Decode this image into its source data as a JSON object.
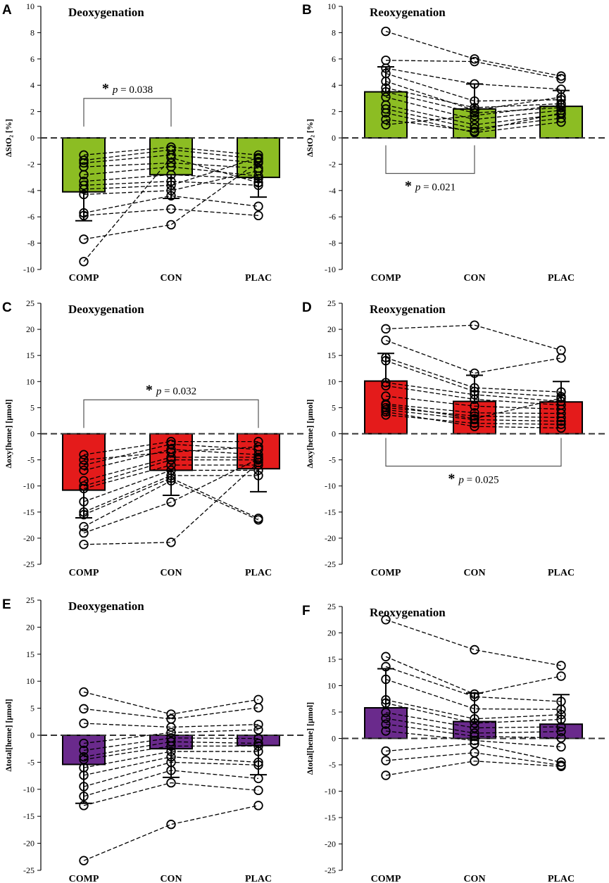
{
  "colors": {
    "green": "#8cbd23",
    "red": "#e41b1b",
    "purple": "#6a2a8c",
    "ink": "#000000"
  },
  "chart_data": [
    {
      "letter": "A",
      "type": "bar",
      "title": "Deoxygenation",
      "ylabel": "ΔStO₂ [%]",
      "ylim": [
        -10,
        10
      ],
      "yticks": [
        -10,
        -8,
        -6,
        -4,
        -2,
        0,
        2,
        4,
        6,
        8,
        10
      ],
      "categories": [
        "COMP",
        "CON",
        "PLAC"
      ],
      "means": [
        -4.1,
        -2.8,
        -3.0
      ],
      "sd": [
        2.2,
        1.8,
        1.5
      ],
      "color": "green",
      "individual": [
        [
          -1.3,
          -1.7,
          -1.9,
          -2.2,
          -2.8,
          -3.3,
          -3.6,
          -3.9,
          -4.3,
          -5.7,
          -5.9,
          -7.7,
          -9.4
        ],
        [
          -0.7,
          -0.9,
          -1.3,
          -1.9,
          -2.2,
          -2.8,
          -3.3,
          -3.6,
          -4.0,
          -4.4,
          -5.4,
          -6.6,
          -1.5
        ],
        [
          -1.3,
          -1.6,
          -1.9,
          -2.3,
          -2.9,
          -3.1,
          -3.6,
          -1.5,
          -2.5,
          -5.2,
          -5.9,
          -1.8,
          -3.4
        ]
      ],
      "significance": [
        {
          "from": 0,
          "to": 1,
          "label": "p = 0.038",
          "y": 3.0,
          "direction": "down"
        }
      ]
    },
    {
      "letter": "B",
      "type": "bar",
      "title": "Reoxygenation",
      "ylabel": "ΔStO₂ [%]",
      "ylim": [
        -10,
        10
      ],
      "yticks": [
        -10,
        -8,
        -6,
        -4,
        -2,
        0,
        2,
        4,
        6,
        8,
        10
      ],
      "categories": [
        "COMP",
        "CON",
        "PLAC"
      ],
      "means": [
        3.5,
        2.2,
        2.4
      ],
      "sd": [
        1.9,
        1.9,
        1.2
      ],
      "color": "green",
      "individual": [
        [
          8.1,
          5.9,
          5.3,
          4.9,
          3.8,
          3.5,
          3.1,
          2.5,
          2.2,
          1.9,
          1.4,
          1.0,
          4.3
        ],
        [
          6.0,
          5.8,
          4.1,
          2.8,
          2.3,
          1.9,
          1.4,
          1.0,
          0.7,
          0.4,
          0.5,
          1.7,
          2.1
        ],
        [
          4.7,
          4.5,
          3.7,
          2.9,
          2.6,
          2.3,
          2.1,
          1.8,
          1.5,
          1.2,
          1.9,
          2.5,
          3.1
        ]
      ],
      "significance": [
        {
          "from": 0,
          "to": 1,
          "label": "p = 0.021",
          "y": -2.7,
          "direction": "up"
        }
      ]
    },
    {
      "letter": "C",
      "type": "bar",
      "title": "Deoxygenation",
      "ylabel": "Δoxy[heme] [μmol]",
      "ylim": [
        -25,
        25
      ],
      "yticks": [
        -25,
        -20,
        -15,
        -10,
        -5,
        0,
        5,
        10,
        15,
        20,
        25
      ],
      "categories": [
        "COMP",
        "CON",
        "PLAC"
      ],
      "means": [
        -10.8,
        -7.0,
        -6.7
      ],
      "sd": [
        5.3,
        4.8,
        4.4
      ],
      "color": "red",
      "individual": [
        [
          -4,
          -6,
          -7,
          -9,
          -10,
          -10.5,
          -13,
          -15,
          -15.5,
          -17.8,
          -19,
          -21.2,
          -5
        ],
        [
          -1.5,
          -2,
          -3,
          -4.5,
          -5,
          -6,
          -7,
          -8,
          -8.5,
          -9,
          -13.1,
          -20.8,
          -3.5
        ],
        [
          -1.5,
          -3,
          -4,
          -4.5,
          -5,
          -6,
          -7,
          -8,
          -16.2,
          -16.5,
          -4.8,
          -5.5,
          -2.5
        ]
      ],
      "significance": [
        {
          "from": 0,
          "to": 2,
          "label": "p = 0.032",
          "y": 6.5,
          "direction": "down"
        }
      ]
    },
    {
      "letter": "D",
      "type": "bar",
      "title": "Reoxygenation",
      "ylabel": "Δoxy[heme] [μmol]",
      "ylim": [
        -25,
        25
      ],
      "yticks": [
        -25,
        -20,
        -15,
        -10,
        -5,
        0,
        5,
        10,
        15,
        20,
        25
      ],
      "categories": [
        "COMP",
        "CON",
        "PLAC"
      ],
      "means": [
        10.1,
        6.2,
        6.1
      ],
      "sd": [
        5.3,
        5.0,
        3.9
      ],
      "color": "red",
      "individual": [
        [
          20.1,
          17.9,
          14.6,
          14.0,
          9.8,
          9.2,
          7.2,
          5.7,
          5.0,
          4.6,
          3.6,
          4.2,
          5.5
        ],
        [
          20.8,
          11.6,
          8.8,
          8.1,
          7.5,
          6.6,
          5.3,
          4.0,
          3.4,
          2.7,
          2.0,
          1.4,
          2.9
        ],
        [
          16.0,
          14.5,
          8.0,
          7.1,
          6.2,
          5.5,
          4.7,
          3.9,
          3.1,
          2.4,
          1.8,
          1.1,
          6.8
        ]
      ],
      "significance": [
        {
          "from": 0,
          "to": 2,
          "label": "p = 0.025",
          "y": -6.2,
          "direction": "up"
        }
      ]
    },
    {
      "letter": "E",
      "type": "bar",
      "title": "Deoxygenation",
      "ylabel": "Δtotal[heme] [μmol]",
      "ylim": [
        -25,
        25
      ],
      "yticks": [
        -25,
        -20,
        -15,
        -10,
        -5,
        0,
        5,
        10,
        15,
        20,
        25
      ],
      "categories": [
        "COMP",
        "CON",
        "PLAC"
      ],
      "means": [
        -5.4,
        -2.5,
        -1.9
      ],
      "sd": [
        7.2,
        5.3,
        5.4
      ],
      "color": "purple",
      "individual": [
        [
          8.0,
          4.9,
          2.2,
          -1.5,
          -2.8,
          -4.0,
          -4.5,
          -6.0,
          -7.4,
          -9.5,
          -11.3,
          -13.0,
          -23.2
        ],
        [
          3.9,
          3.0,
          1.5,
          0.5,
          -0.5,
          -1.2,
          -2.0,
          -3.0,
          -4.0,
          -5.0,
          -6.5,
          -8.8,
          -16.5
        ],
        [
          6.6,
          5.1,
          2.0,
          1.0,
          -0.6,
          -1.5,
          -2.0,
          -3.0,
          -5.0,
          -5.5,
          -8.0,
          -10.2,
          -13.0
        ]
      ],
      "significance": []
    },
    {
      "letter": "F",
      "type": "bar",
      "title": "Reoxygenation",
      "ylabel": "Δtotal[heme] [μmol]",
      "ylim": [
        -25,
        25
      ],
      "yticks": [
        -25,
        -20,
        -15,
        -10,
        -5,
        0,
        5,
        10,
        15,
        20,
        25
      ],
      "categories": [
        "COMP",
        "CON",
        "PLAC"
      ],
      "means": [
        5.8,
        3.2,
        2.7
      ],
      "sd": [
        7.4,
        5.4,
        5.6
      ],
      "color": "purple",
      "individual": [
        [
          22.5,
          15.5,
          13.6,
          11.2,
          7.3,
          6.7,
          4.9,
          3.8,
          2.7,
          1.4,
          -2.4,
          -4.2,
          -7.0
        ],
        [
          16.8,
          8.4,
          7.9,
          5.6,
          3.7,
          2.9,
          2.0,
          1.0,
          0.4,
          -0.4,
          -1.0,
          -2.7,
          -4.3
        ],
        [
          13.8,
          11.8,
          7.0,
          5.5,
          4.5,
          3.6,
          2.2,
          1.3,
          0.1,
          -1.6,
          -4.5,
          -5.1,
          -5.3
        ]
      ],
      "significance": []
    }
  ]
}
